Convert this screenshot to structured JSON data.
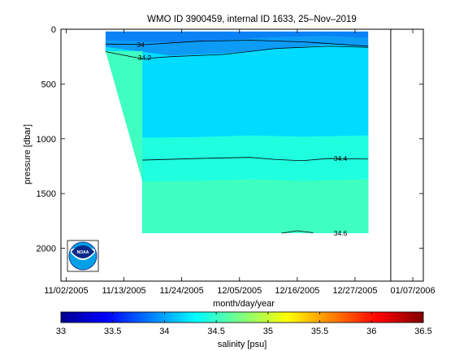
{
  "chart_data": {
    "type": "heatmap",
    "title": "WMO ID 3900459, internal ID 1633, 25–Nov–2019",
    "xlabel": "month/day/year",
    "ylabel": "pressure [dbar]",
    "x_tick_labels": [
      "11/02/2005",
      "11/13/2005",
      "11/24/2005",
      "12/05/2005",
      "12/16/2005",
      "12/27/2005",
      "01/07/2006"
    ],
    "x_range_days": [
      -1,
      68
    ],
    "x_ticks_days": [
      0,
      11,
      22,
      33,
      44,
      55,
      66
    ],
    "y_ticks": [
      0,
      500,
      1000,
      1500,
      2000
    ],
    "y_tick_labels": [
      "0",
      "500",
      "1000",
      "1500",
      "2000"
    ],
    "ylim": [
      2300,
      0
    ],
    "grid": false,
    "colorbar": {
      "label": "salinity [psu]",
      "range": [
        33,
        36.5
      ],
      "ticks": [
        "33",
        "33.5",
        "34",
        "34.5",
        "35",
        "35.5",
        "36",
        "36.5"
      ],
      "colormap": "jet"
    },
    "bands": [
      {
        "name": "33.8–34.0",
        "color": "#0a82f5",
        "top": [
          [
            7.5,
            20
          ],
          [
            27,
            20
          ],
          [
            37,
            20
          ],
          [
            47,
            20
          ],
          [
            57.5,
            20
          ]
        ]
      },
      {
        "name": "34.0–34.2",
        "color": "#0c9cf6",
        "top": [
          [
            7.5,
            100
          ],
          [
            20,
            120
          ],
          [
            30,
            100
          ],
          [
            40,
            70
          ],
          [
            50,
            60
          ],
          [
            57.5,
            80
          ]
        ]
      },
      {
        "name": "34.2–34.4",
        "color": "#00dcff",
        "top": [
          [
            7.5,
            160
          ],
          [
            20,
            240
          ],
          [
            30,
            220
          ],
          [
            40,
            180
          ],
          [
            50,
            140
          ],
          [
            57.5,
            160
          ]
        ]
      },
      {
        "name": "34.4–34.6",
        "color": "#1fffe0",
        "top": [
          [
            14.5,
            990
          ],
          [
            25,
            985
          ],
          [
            35,
            970
          ],
          [
            45,
            980
          ],
          [
            57.5,
            970
          ]
        ]
      },
      {
        "name": "34.6–34.8",
        "color": "#3fffc0",
        "top": [
          [
            14.5,
            1390
          ],
          [
            25,
            1385
          ],
          [
            35,
            1370
          ],
          [
            45,
            1385
          ],
          [
            57.5,
            1370
          ]
        ]
      }
    ],
    "contours": [
      {
        "level": "34",
        "points": [
          [
            7.5,
            135
          ],
          [
            15,
            140
          ],
          [
            25,
            110
          ],
          [
            35,
            100
          ],
          [
            45,
            115
          ],
          [
            57.5,
            155
          ]
        ]
      },
      {
        "level": "34.2",
        "points": [
          [
            7.5,
            205
          ],
          [
            14.5,
            270
          ],
          [
            20,
            250
          ],
          [
            30,
            230
          ],
          [
            40,
            175
          ],
          [
            50,
            155
          ],
          [
            57.5,
            165
          ]
        ]
      },
      {
        "level": "34.4",
        "points": [
          [
            14.5,
            1195
          ],
          [
            25,
            1180
          ],
          [
            35,
            1170
          ],
          [
            40,
            1190
          ],
          [
            45,
            1200
          ],
          [
            50,
            1180
          ],
          [
            57.5,
            1185
          ]
        ]
      },
      {
        "level": "34.6",
        "points": [
          [
            41,
            1862
          ],
          [
            44,
            1840
          ],
          [
            47,
            1858
          ]
        ]
      }
    ],
    "contour_labels": [
      "34",
      "34.2",
      "34.4",
      "34.6"
    ],
    "data_extent": {
      "x_start": 7.5,
      "x_step": 14.5,
      "x_end": 57.5,
      "shallow_max": 200,
      "max_depth": 1860
    },
    "vertical_line_day": 61.8
  }
}
